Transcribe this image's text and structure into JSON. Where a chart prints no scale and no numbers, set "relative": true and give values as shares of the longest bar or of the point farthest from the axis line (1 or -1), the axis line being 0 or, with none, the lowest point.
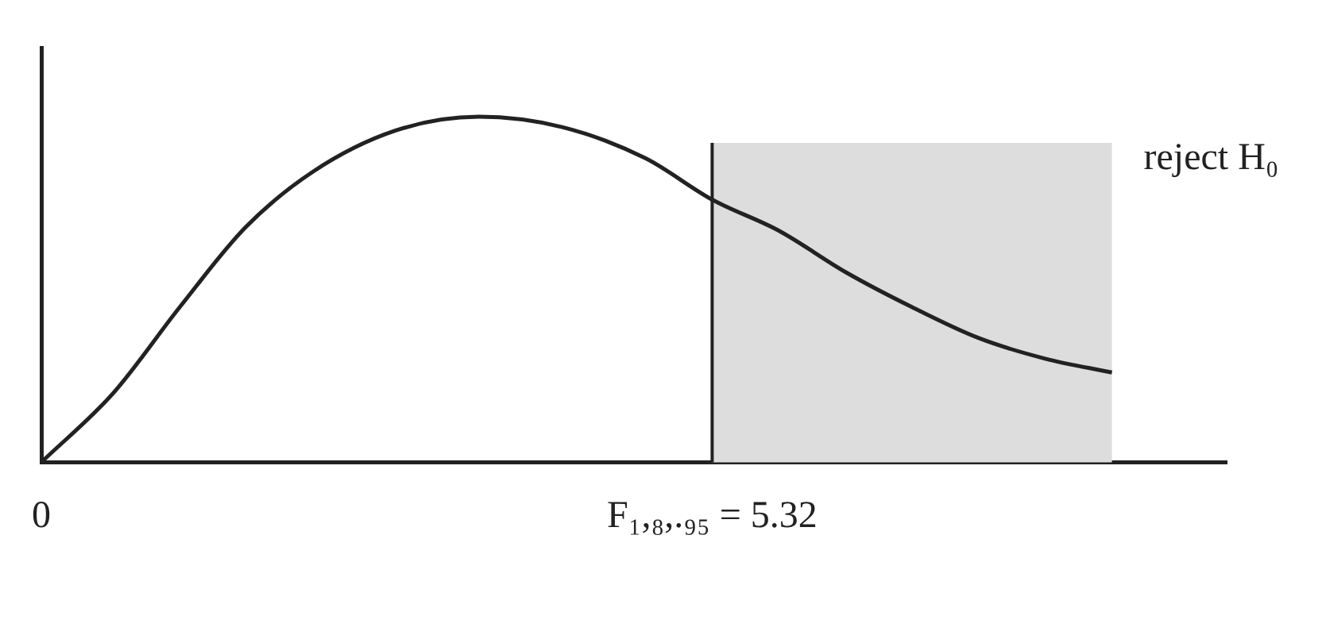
{
  "chart_data": {
    "type": "line",
    "relative": true,
    "x": [
      0,
      0.57,
      1.1,
      1.62,
      2.15,
      2.81,
      3.47,
      4.13,
      4.79,
      5.32,
      5.85,
      6.38,
      6.9,
      7.43,
      7.96,
      8.49
    ],
    "series": [
      {
        "color": "#222222",
        "values": [
          0,
          0.2,
          0.45,
          0.68,
          0.84,
          0.96,
          1,
          0.97,
          0.88,
          0.76,
          0.67,
          0.55,
          0.45,
          0.36,
          0.3,
          0.26
        ]
      }
    ],
    "xlim": [
      0,
      9.4
    ],
    "xticks": [
      0,
      {
        "value": 5.32,
        "label": "F₁,₈,.₉₅ = 5.32"
      }
    ],
    "bands": [
      {
        "axis": "x",
        "from": 5.32,
        "to": 8.49,
        "label": "reject H₀",
        "color": "#dddddd"
      }
    ],
    "ref_lines": [
      {
        "axis": "x",
        "value": 5.32,
        "color": "#222222"
      }
    ],
    "grid": false,
    "legend": false,
    "marker": "none",
    "line_style": "solid"
  }
}
